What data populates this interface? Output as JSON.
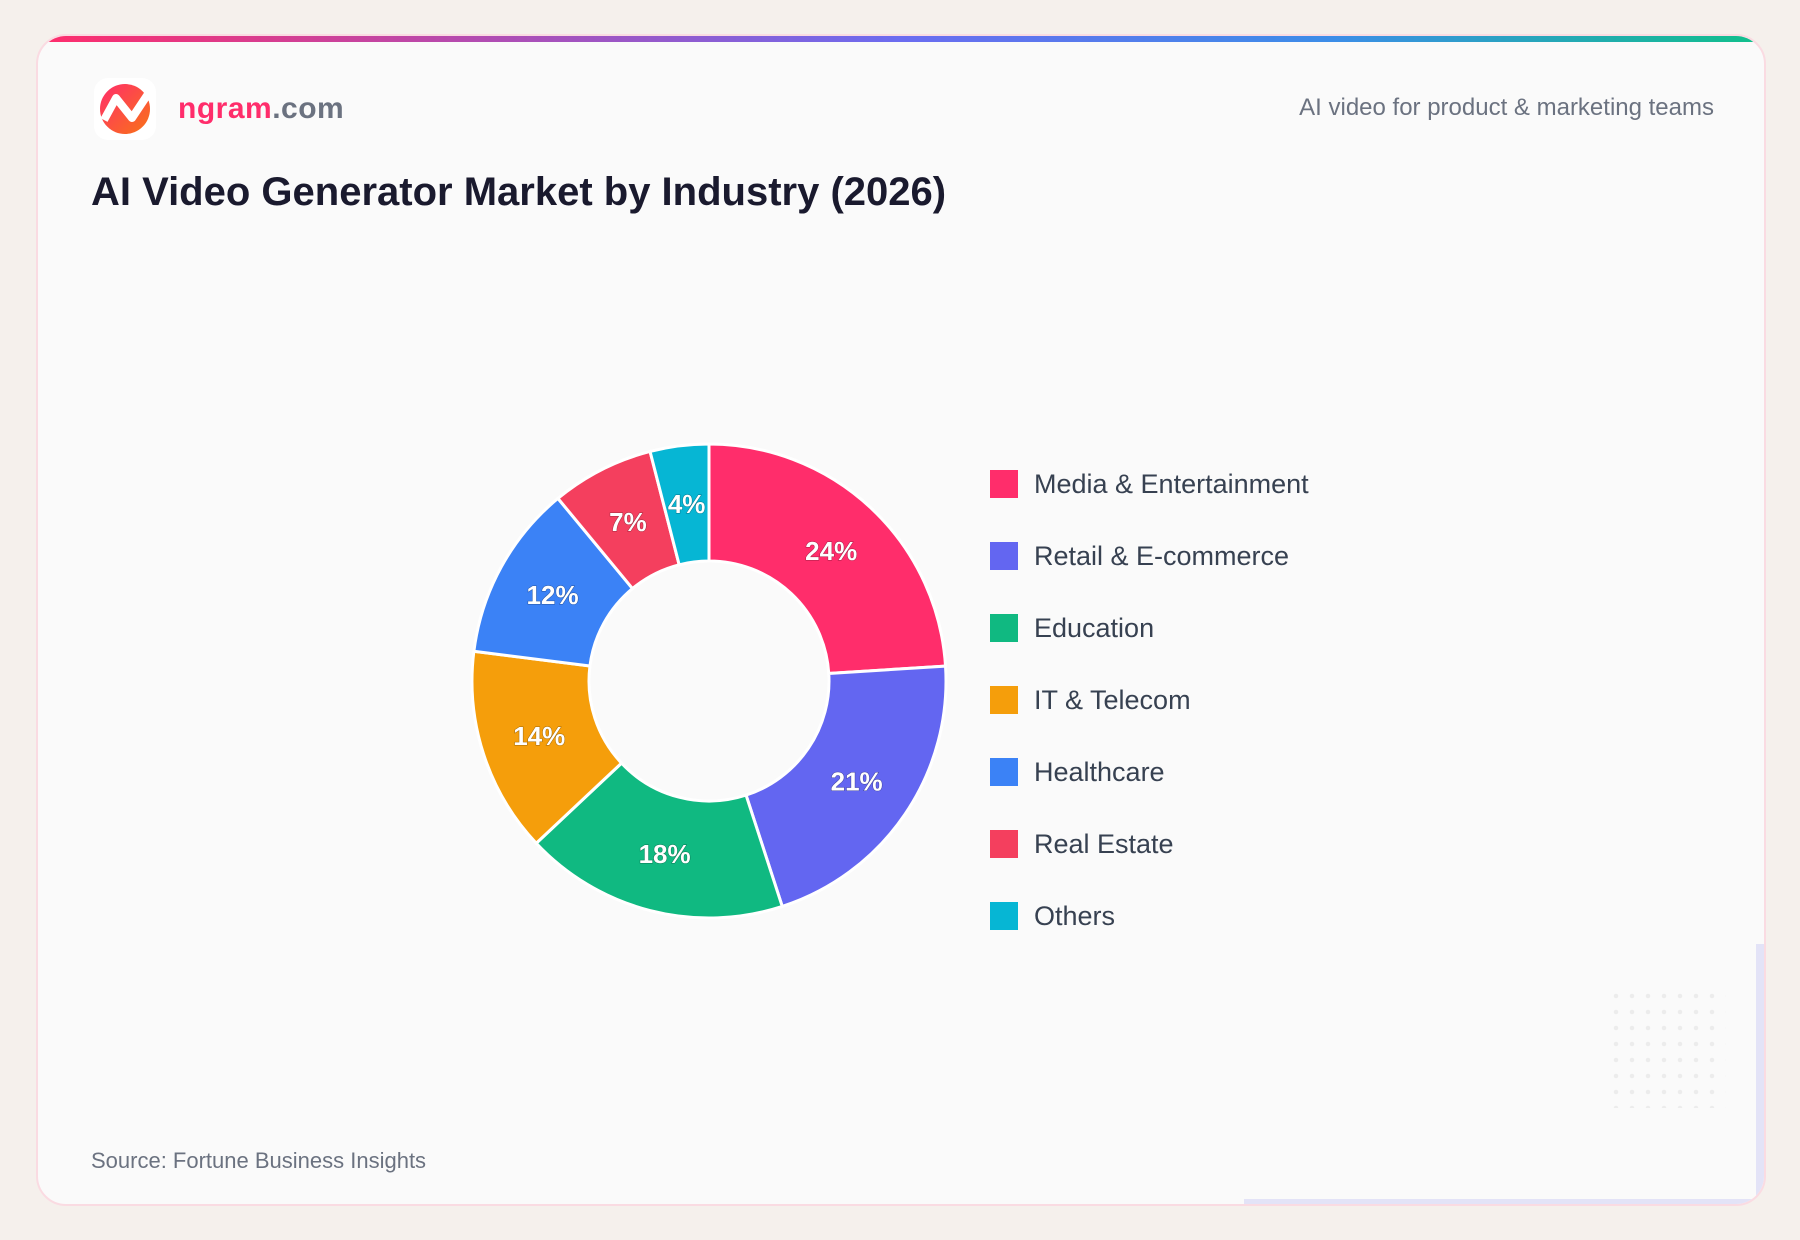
{
  "header": {
    "brand_main": "ngram",
    "brand_tld": ".com",
    "tagline": "AI video for product & marketing teams"
  },
  "chart_data": {
    "type": "pie",
    "donut": true,
    "title": "AI Video Generator Market by Industry (2026)",
    "categories": [
      "Media & Entertainment",
      "Retail & E-commerce",
      "Education",
      "IT & Telecom",
      "Healthcare",
      "Real Estate",
      "Others"
    ],
    "values": [
      24,
      21,
      18,
      14,
      12,
      7,
      4
    ],
    "labels": [
      "24%",
      "21%",
      "18%",
      "14%",
      "12%",
      "7%",
      "4%"
    ],
    "colors": [
      "#ff2d6b",
      "#6366f1",
      "#10b981",
      "#f59e0b",
      "#3b82f6",
      "#f43f5e",
      "#06b6d4"
    ],
    "legend_position": "right",
    "source": "Source: Fortune Business Insights"
  }
}
